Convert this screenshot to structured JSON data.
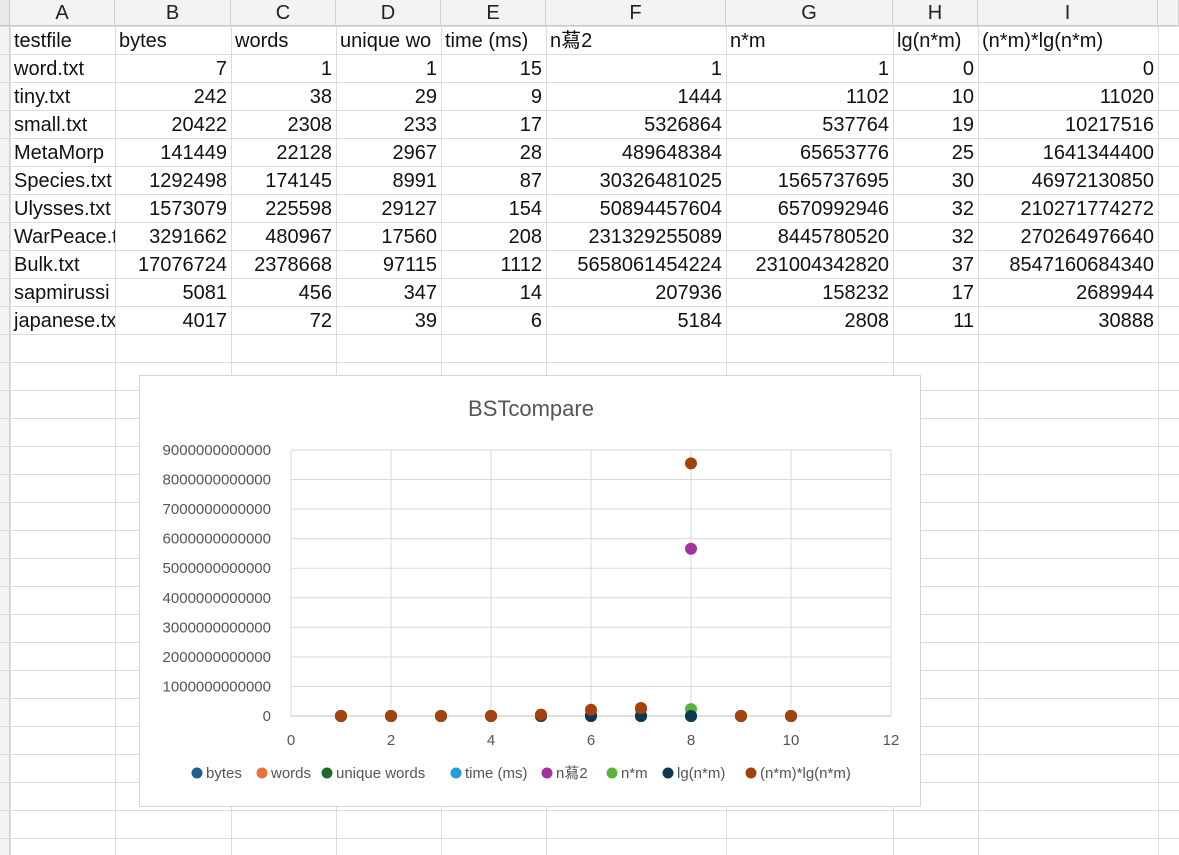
{
  "spreadsheet": {
    "columns": [
      "A",
      "B",
      "C",
      "D",
      "E",
      "F",
      "G",
      "H",
      "I"
    ],
    "header": [
      "testfile",
      "bytes",
      "words",
      "unique wo",
      "time (ms)",
      "n蕮2",
      "n*m",
      "lg(n*m)",
      "(n*m)*lg(n*m)"
    ],
    "rows": [
      [
        "word.txt",
        "7",
        "1",
        "1",
        "15",
        "1",
        "1",
        "0",
        "0"
      ],
      [
        "tiny.txt",
        "242",
        "38",
        "29",
        "9",
        "1444",
        "1102",
        "10",
        "11020"
      ],
      [
        "small.txt",
        "20422",
        "2308",
        "233",
        "17",
        "5326864",
        "537764",
        "19",
        "10217516"
      ],
      [
        "MetaMorp",
        "141449",
        "22128",
        "2967",
        "28",
        "489648384",
        "65653776",
        "25",
        "1641344400"
      ],
      [
        "Species.txt",
        "1292498",
        "174145",
        "8991",
        "87",
        "30326481025",
        "1565737695",
        "30",
        "46972130850"
      ],
      [
        "Ulysses.txt",
        "1573079",
        "225598",
        "29127",
        "154",
        "50894457604",
        "6570992946",
        "32",
        "210271774272"
      ],
      [
        "WarPeace.t",
        "3291662",
        "480967",
        "17560",
        "208",
        "231329255089",
        "8445780520",
        "32",
        "270264976640"
      ],
      [
        "Bulk.txt",
        "17076724",
        "2378668",
        "97115",
        "1112",
        "5658061454224",
        "231004342820",
        "37",
        "8547160684340"
      ],
      [
        "sapmirussi",
        "5081",
        "456",
        "347",
        "14",
        "207936",
        "158232",
        "17",
        "2689944"
      ],
      [
        "japanese.tx",
        "4017",
        "72",
        "39",
        "6",
        "5184",
        "2808",
        "11",
        "30888"
      ]
    ]
  },
  "chart_data": {
    "type": "scatter",
    "title": "BSTcompare",
    "xlabel": "",
    "ylabel": "",
    "xlim": [
      0,
      12
    ],
    "ylim": [
      0,
      9000000000000
    ],
    "x_ticks": [
      0,
      2,
      4,
      6,
      8,
      10,
      12
    ],
    "y_ticks": [
      0,
      1000000000000,
      2000000000000,
      3000000000000,
      4000000000000,
      5000000000000,
      6000000000000,
      7000000000000,
      8000000000000,
      9000000000000
    ],
    "grid": true,
    "legend_position": "bottom",
    "x": [
      1,
      2,
      3,
      4,
      5,
      6,
      7,
      8,
      9,
      10
    ],
    "series": [
      {
        "name": "bytes",
        "color": "#1f5f8b",
        "values": [
          7,
          242,
          20422,
          141449,
          1292498,
          1573079,
          3291662,
          17076724,
          5081,
          4017
        ]
      },
      {
        "name": "words",
        "color": "#e8743b",
        "values": [
          1,
          38,
          2308,
          22128,
          174145,
          225598,
          480967,
          2378668,
          456,
          72
        ]
      },
      {
        "name": "unique words",
        "color": "#1b6b2a",
        "values": [
          1,
          29,
          233,
          2967,
          8991,
          29127,
          17560,
          97115,
          347,
          39
        ]
      },
      {
        "name": "time (ms)",
        "color": "#1fa0d8",
        "values": [
          15,
          9,
          17,
          28,
          87,
          154,
          208,
          1112,
          14,
          6
        ]
      },
      {
        "name": "n蕮2",
        "color": "#a3329c",
        "values": [
          1,
          1444,
          5326864,
          489648384,
          30326481025,
          50894457604,
          231329255089,
          5658061454224,
          207936,
          5184
        ]
      },
      {
        "name": "n*m",
        "color": "#58b33a",
        "values": [
          1,
          1102,
          537764,
          65653776,
          1565737695,
          6570992946,
          8445780520,
          231004342820,
          158232,
          2808
        ]
      },
      {
        "name": "lg(n*m)",
        "color": "#0f3850",
        "values": [
          0,
          10,
          19,
          25,
          30,
          32,
          32,
          37,
          17,
          11
        ]
      },
      {
        "name": "(n*m)*lg(n*m)",
        "color": "#a4420f",
        "values": [
          0,
          11020,
          10217516,
          1641344400,
          46972130850,
          210271774272,
          270264976640,
          8547160684340,
          2689944,
          30888
        ]
      }
    ]
  }
}
